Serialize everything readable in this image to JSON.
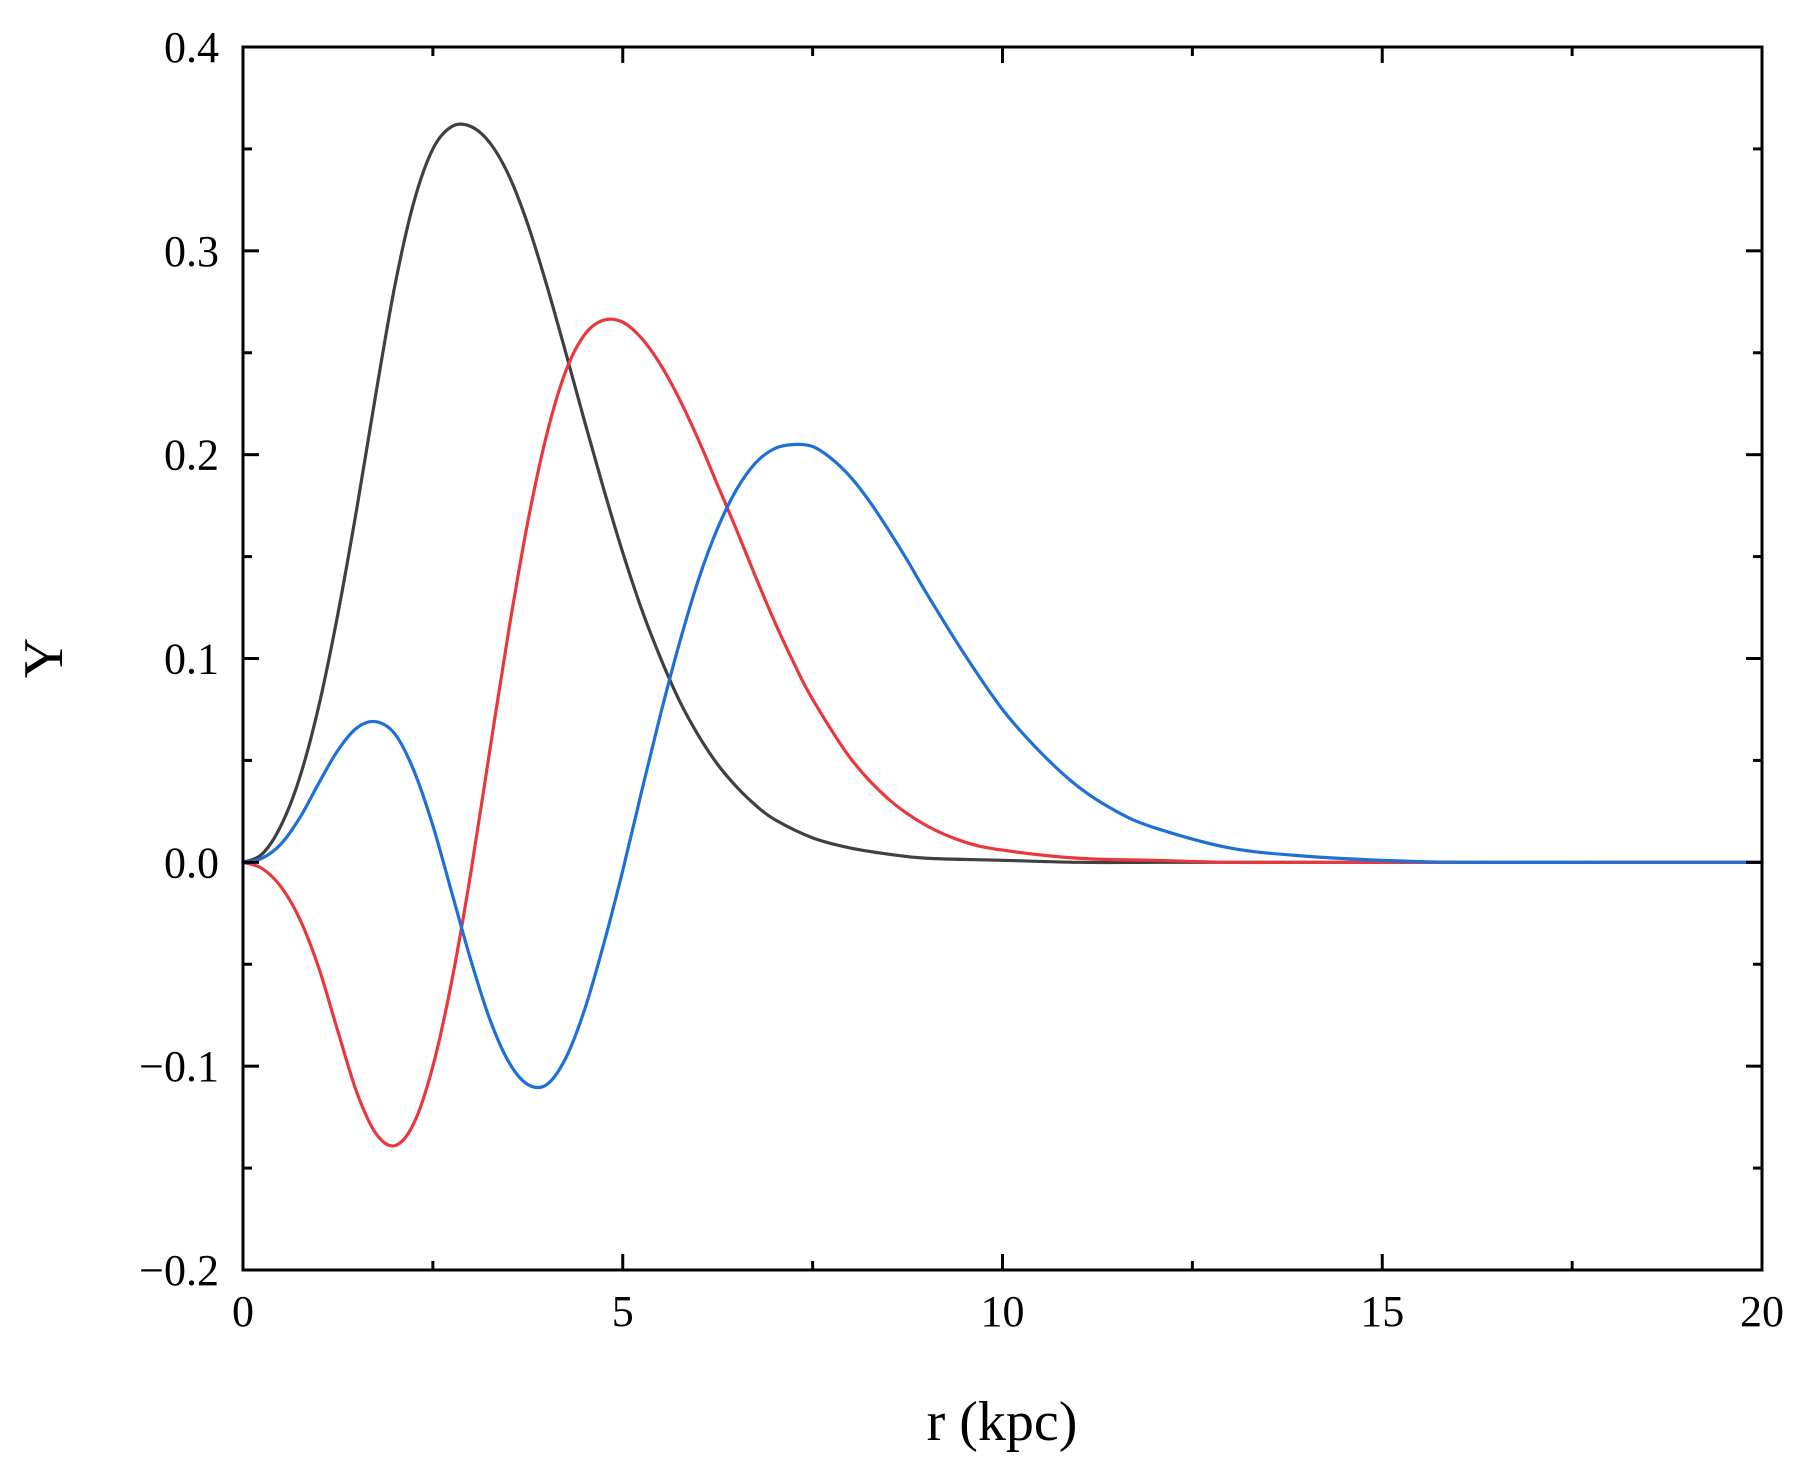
{
  "chart_data": {
    "type": "line",
    "title": "",
    "xlabel": "r (kpc)",
    "ylabel": "Y",
    "xlim": [
      0,
      20
    ],
    "ylim": [
      -0.2,
      0.4
    ],
    "xticks": [
      0,
      5,
      10,
      15,
      20
    ],
    "xtick_labels": [
      "0",
      "5",
      "10",
      "15",
      "20"
    ],
    "yticks": [
      -0.2,
      -0.1,
      0.0,
      0.1,
      0.2,
      0.3,
      0.4
    ],
    "ytick_labels": [
      "−0.2",
      "−0.1",
      "0.0",
      "0.1",
      "0.2",
      "0.3",
      "0.4"
    ],
    "grid": false,
    "legend": "none",
    "series": [
      {
        "color": "#404040",
        "x": [
          0,
          0.25,
          0.5,
          0.75,
          1.0,
          1.25,
          1.5,
          1.75,
          2.0,
          2.25,
          2.5,
          2.75,
          3.0,
          3.25,
          3.5,
          3.75,
          4.0,
          4.25,
          4.5,
          4.75,
          5.0,
          5.25,
          5.5,
          5.75,
          6.0,
          6.25,
          6.5,
          6.75,
          7.0,
          7.5,
          8.0,
          8.5,
          9.0,
          10.0,
          11.0,
          12.0,
          13.0,
          14.0,
          16.0,
          18.0,
          20.0
        ],
        "y": [
          0.0,
          0.004,
          0.018,
          0.042,
          0.077,
          0.122,
          0.174,
          0.23,
          0.283,
          0.324,
          0.35,
          0.361,
          0.361,
          0.353,
          0.337,
          0.313,
          0.283,
          0.25,
          0.216,
          0.183,
          0.152,
          0.124,
          0.1,
          0.079,
          0.062,
          0.048,
          0.037,
          0.028,
          0.021,
          0.012,
          0.007,
          0.004,
          0.002,
          0.001,
          0.0,
          0.0,
          0.0,
          0.0,
          0.0,
          0.0,
          0.0
        ]
      },
      {
        "color": "#e8383d",
        "x": [
          0,
          0.25,
          0.5,
          0.75,
          1.0,
          1.25,
          1.5,
          1.75,
          2.0,
          2.25,
          2.5,
          2.75,
          3.0,
          3.25,
          3.5,
          3.75,
          4.0,
          4.25,
          4.5,
          4.75,
          5.0,
          5.25,
          5.5,
          5.75,
          6.0,
          6.25,
          6.5,
          6.75,
          7.0,
          7.25,
          7.5,
          8.0,
          8.5,
          9.0,
          9.5,
          10.0,
          11.0,
          12.0,
          13.0,
          14.0,
          16.0,
          18.0,
          20.0
        ],
        "y": [
          0.0,
          -0.003,
          -0.012,
          -0.028,
          -0.052,
          -0.083,
          -0.113,
          -0.133,
          -0.139,
          -0.128,
          -0.1,
          -0.058,
          -0.005,
          0.055,
          0.114,
          0.167,
          0.21,
          0.241,
          0.259,
          0.266,
          0.265,
          0.257,
          0.244,
          0.227,
          0.207,
          0.185,
          0.163,
          0.14,
          0.118,
          0.098,
          0.08,
          0.051,
          0.031,
          0.018,
          0.01,
          0.006,
          0.002,
          0.001,
          0.0,
          0.0,
          0.0,
          0.0,
          0.0
        ]
      },
      {
        "color": "#1f6fd9",
        "x": [
          0,
          0.25,
          0.5,
          0.75,
          1.0,
          1.25,
          1.5,
          1.75,
          2.0,
          2.25,
          2.5,
          2.75,
          3.0,
          3.25,
          3.5,
          3.75,
          4.0,
          4.25,
          4.5,
          4.75,
          5.0,
          5.25,
          5.5,
          5.75,
          6.0,
          6.25,
          6.5,
          6.75,
          7.0,
          7.25,
          7.5,
          7.75,
          8.0,
          8.25,
          8.5,
          8.75,
          9.0,
          9.5,
          10.0,
          10.5,
          11.0,
          11.5,
          12.0,
          13.0,
          14.0,
          15.0,
          16.0,
          18.0,
          20.0
        ],
        "y": [
          0.0,
          0.002,
          0.009,
          0.022,
          0.039,
          0.055,
          0.066,
          0.069,
          0.063,
          0.045,
          0.018,
          -0.015,
          -0.048,
          -0.077,
          -0.098,
          -0.109,
          -0.109,
          -0.096,
          -0.072,
          -0.04,
          -0.004,
          0.035,
          0.073,
          0.108,
          0.139,
          0.164,
          0.183,
          0.196,
          0.203,
          0.205,
          0.204,
          0.198,
          0.189,
          0.177,
          0.163,
          0.148,
          0.132,
          0.102,
          0.075,
          0.054,
          0.037,
          0.025,
          0.017,
          0.007,
          0.003,
          0.001,
          0.0,
          0.0,
          0.0
        ]
      }
    ]
  }
}
